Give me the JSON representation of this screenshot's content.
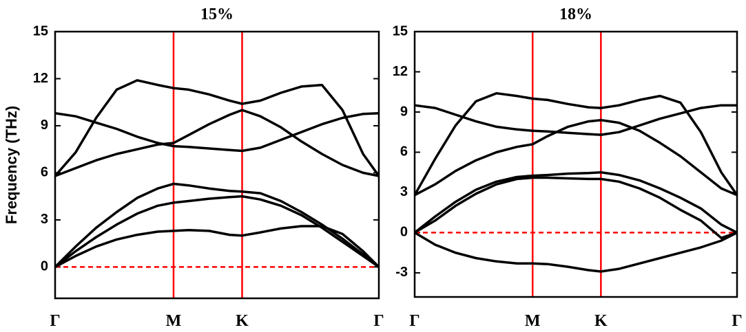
{
  "chart_data": [
    {
      "type": "line",
      "title": "15%",
      "ylabel": "Frequency (THz)",
      "x": [
        0,
        0.1,
        0.2,
        0.3,
        0.4,
        0.5,
        0.577,
        0.65,
        0.75,
        0.85,
        0.911,
        1.0,
        1.1,
        1.2,
        1.3,
        1.4,
        1.5,
        1.577
      ],
      "xlim": [
        0,
        1.577
      ],
      "xticks": [
        {
          "value": 0,
          "label": "Γ"
        },
        {
          "value": 0.577,
          "label": "M"
        },
        {
          "value": 0.911,
          "label": "K"
        },
        {
          "value": 1.577,
          "label": "Γ"
        }
      ],
      "ylim": [
        -2,
        15
      ],
      "yticks": [
        0,
        3,
        6,
        9,
        12,
        15
      ],
      "vlines": [
        0.577,
        0.911
      ],
      "vline_color": "#ff0000",
      "hline": 0,
      "hline_color": "#ff0000",
      "series": [
        {
          "color": "#000000",
          "values": [
            0,
            0.7,
            1.3,
            1.75,
            2.05,
            2.25,
            2.3,
            2.35,
            2.3,
            2.05,
            2.0,
            2.2,
            2.45,
            2.6,
            2.6,
            2.1,
            1.0,
            0
          ]
        },
        {
          "color": "#000000",
          "values": [
            0,
            1.0,
            1.9,
            2.7,
            3.4,
            3.9,
            4.1,
            4.2,
            4.35,
            4.45,
            4.5,
            4.3,
            3.9,
            3.3,
            2.5,
            1.6,
            0.7,
            0
          ]
        },
        {
          "color": "#000000",
          "values": [
            0,
            1.3,
            2.5,
            3.5,
            4.4,
            5.0,
            5.3,
            5.2,
            5.0,
            4.85,
            4.8,
            4.7,
            4.2,
            3.5,
            2.7,
            1.8,
            0.8,
            0
          ]
        },
        {
          "color": "#000000",
          "values": [
            5.8,
            6.3,
            6.8,
            7.2,
            7.5,
            7.8,
            7.9,
            8.4,
            9.1,
            9.7,
            10.0,
            9.6,
            8.9,
            8.0,
            7.2,
            6.5,
            6.0,
            5.8
          ]
        },
        {
          "color": "#000000",
          "values": [
            9.8,
            9.6,
            9.2,
            8.8,
            8.3,
            7.9,
            7.7,
            7.65,
            7.55,
            7.45,
            7.4,
            7.6,
            8.1,
            8.6,
            9.1,
            9.5,
            9.75,
            9.8
          ]
        },
        {
          "color": "#000000",
          "values": [
            5.8,
            7.3,
            9.5,
            11.3,
            11.9,
            11.6,
            11.4,
            11.3,
            11.0,
            10.6,
            10.4,
            10.6,
            11.1,
            11.5,
            11.6,
            10.0,
            7.2,
            5.8
          ]
        }
      ]
    },
    {
      "type": "line",
      "title": "18%",
      "x": [
        0,
        0.1,
        0.2,
        0.3,
        0.4,
        0.5,
        0.577,
        0.65,
        0.75,
        0.85,
        0.911,
        1.0,
        1.1,
        1.2,
        1.3,
        1.4,
        1.5,
        1.577
      ],
      "xlim": [
        0,
        1.577
      ],
      "xticks": [
        {
          "value": 0,
          "label": "Γ"
        },
        {
          "value": 0.577,
          "label": "M"
        },
        {
          "value": 0.911,
          "label": "K"
        },
        {
          "value": 1.577,
          "label": "Γ"
        }
      ],
      "ylim": [
        -4.8,
        15
      ],
      "yticks": [
        -3,
        0,
        3,
        6,
        9,
        12,
        15
      ],
      "vlines": [
        0.577,
        0.911
      ],
      "vline_color": "#ff0000",
      "hline": 0,
      "hline_color": "#ff0000",
      "series": [
        {
          "color": "#000000",
          "values": [
            0,
            -0.9,
            -1.5,
            -1.9,
            -2.15,
            -2.3,
            -2.3,
            -2.35,
            -2.55,
            -2.8,
            -2.9,
            -2.7,
            -2.3,
            -1.9,
            -1.5,
            -1.1,
            -0.6,
            0
          ]
        },
        {
          "color": "#000000",
          "values": [
            0,
            0.9,
            2.0,
            2.9,
            3.6,
            4.0,
            4.1,
            4.1,
            4.05,
            4.0,
            4.0,
            3.8,
            3.3,
            2.6,
            1.7,
            0.9,
            -0.4,
            0
          ]
        },
        {
          "color": "#000000",
          "values": [
            0,
            1.2,
            2.3,
            3.2,
            3.8,
            4.15,
            4.25,
            4.3,
            4.4,
            4.45,
            4.5,
            4.3,
            3.9,
            3.3,
            2.6,
            1.8,
            0.6,
            0
          ]
        },
        {
          "color": "#000000",
          "values": [
            2.8,
            3.6,
            4.6,
            5.4,
            6.0,
            6.4,
            6.6,
            7.2,
            7.9,
            8.3,
            8.4,
            8.2,
            7.6,
            6.7,
            5.7,
            4.5,
            3.3,
            2.8
          ]
        },
        {
          "color": "#000000",
          "values": [
            9.5,
            9.3,
            8.8,
            8.3,
            7.9,
            7.7,
            7.6,
            7.55,
            7.45,
            7.35,
            7.3,
            7.5,
            8.0,
            8.5,
            8.9,
            9.3,
            9.5,
            9.5
          ]
        },
        {
          "color": "#000000",
          "values": [
            2.8,
            5.5,
            8.0,
            9.8,
            10.4,
            10.2,
            10.0,
            9.9,
            9.6,
            9.35,
            9.3,
            9.5,
            9.9,
            10.2,
            9.7,
            7.5,
            4.5,
            2.8
          ]
        }
      ]
    }
  ]
}
